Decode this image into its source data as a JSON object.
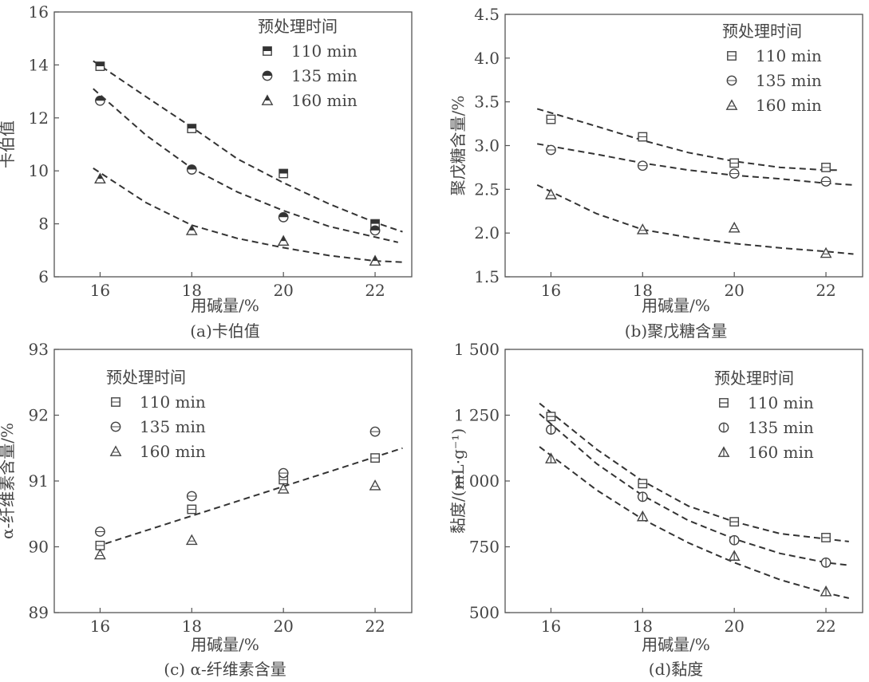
{
  "legend_title": "预处理时间",
  "xlabel": "用碱量/%",
  "chart_data": [
    {
      "id": "a",
      "type": "scatter",
      "caption": "(a)卡伯值",
      "ylabel": "卡伯值",
      "x_ticks": [
        "16",
        "18",
        "20",
        "22"
      ],
      "y_ticks": [
        "6",
        "8",
        "10",
        "12",
        "14",
        "16"
      ],
      "xlim": [
        15,
        22.8
      ],
      "ylim": [
        6,
        16
      ],
      "legend": "top-right",
      "marker_fill": "half",
      "series": [
        {
          "name": "110 min",
          "marker": "square",
          "x": [
            16,
            18,
            20,
            22
          ],
          "y": [
            13.95,
            11.6,
            9.9,
            8.0
          ],
          "fit": [
            [
              15.85,
              14.15
            ],
            [
              17,
              12.8
            ],
            [
              18,
              11.65
            ],
            [
              19,
              10.45
            ],
            [
              20,
              9.55
            ],
            [
              21,
              8.75
            ],
            [
              22,
              8.05
            ],
            [
              22.6,
              7.7
            ]
          ]
        },
        {
          "name": "135 min",
          "marker": "circle",
          "x": [
            16,
            18,
            20,
            22
          ],
          "y": [
            12.65,
            10.05,
            8.25,
            7.75
          ],
          "fit": [
            [
              15.85,
              13.1
            ],
            [
              17,
              11.35
            ],
            [
              18,
              10.1
            ],
            [
              19,
              9.2
            ],
            [
              20,
              8.5
            ],
            [
              21,
              7.9
            ],
            [
              22,
              7.5
            ],
            [
              22.5,
              7.3
            ]
          ]
        },
        {
          "name": "160 min",
          "marker": "triangle",
          "x": [
            16,
            18,
            20,
            22
          ],
          "y": [
            9.7,
            7.75,
            7.35,
            6.6
          ],
          "fit": [
            [
              15.85,
              10.1
            ],
            [
              17,
              8.8
            ],
            [
              18,
              7.95
            ],
            [
              19,
              7.45
            ],
            [
              20,
              7.1
            ],
            [
              21,
              6.8
            ],
            [
              22,
              6.6
            ],
            [
              22.6,
              6.55
            ]
          ]
        }
      ]
    },
    {
      "id": "b",
      "type": "scatter",
      "caption": "(b)聚戊糖含量",
      "ylabel": "聚戊糖含量/%",
      "x_ticks": [
        "16",
        "18",
        "20",
        "22"
      ],
      "y_ticks": [
        "1.5",
        "2.0",
        "2.5",
        "3.0",
        "3.5",
        "4.0",
        "4.5"
      ],
      "xlim": [
        15,
        22.8
      ],
      "ylim": [
        1.5,
        4.5
      ],
      "legend": "top-right",
      "marker_fill": "none",
      "series": [
        {
          "name": "110 min",
          "marker": "square",
          "x": [
            16,
            18,
            20,
            22
          ],
          "y": [
            3.3,
            3.1,
            2.8,
            2.75
          ],
          "fit": [
            [
              15.7,
              3.42
            ],
            [
              17,
              3.22
            ],
            [
              18,
              3.06
            ],
            [
              19,
              2.92
            ],
            [
              20,
              2.82
            ],
            [
              21,
              2.75
            ],
            [
              22,
              2.72
            ],
            [
              22.3,
              2.72
            ]
          ]
        },
        {
          "name": "135 min",
          "marker": "circle",
          "x": [
            16,
            18,
            20,
            22
          ],
          "y": [
            2.95,
            2.77,
            2.68,
            2.59
          ],
          "fit": [
            [
              15.7,
              3.02
            ],
            [
              17,
              2.9
            ],
            [
              18,
              2.8
            ],
            [
              19,
              2.72
            ],
            [
              20,
              2.66
            ],
            [
              21,
              2.62
            ],
            [
              22,
              2.57
            ],
            [
              22.6,
              2.55
            ]
          ]
        },
        {
          "name": "160 min",
          "marker": "triangle",
          "x": [
            16,
            18,
            20,
            22
          ],
          "y": [
            2.44,
            2.04,
            2.06,
            1.77
          ],
          "fit": [
            [
              15.7,
              2.55
            ],
            [
              17,
              2.22
            ],
            [
              18,
              2.04
            ],
            [
              19,
              1.95
            ],
            [
              20,
              1.88
            ],
            [
              21,
              1.83
            ],
            [
              22,
              1.79
            ],
            [
              22.6,
              1.76
            ]
          ]
        }
      ]
    },
    {
      "id": "c",
      "type": "scatter",
      "caption": "(c) α-纤维素含量",
      "ylabel": "α-纤维素含量/%",
      "x_ticks": [
        "16",
        "18",
        "20",
        "22"
      ],
      "y_ticks": [
        "89",
        "90",
        "91",
        "92",
        "93"
      ],
      "xlim": [
        15,
        22.8
      ],
      "ylim": [
        89,
        93
      ],
      "legend": "top-left",
      "marker_fill": "none",
      "series": [
        {
          "name": "110 min",
          "marker": "square",
          "x": [
            16,
            18,
            20,
            22
          ],
          "y": [
            90.02,
            90.57,
            91.02,
            91.35
          ]
        },
        {
          "name": "135 min",
          "marker": "circle",
          "x": [
            16,
            18,
            20,
            22
          ],
          "y": [
            90.23,
            90.77,
            91.12,
            91.75
          ]
        },
        {
          "name": "160 min",
          "marker": "triangle",
          "x": [
            16,
            18,
            20,
            22
          ],
          "y": [
            89.88,
            90.1,
            90.88,
            90.93
          ]
        }
      ],
      "fit": [
        [
          15.9,
          90.0
        ],
        [
          22.6,
          91.5
        ]
      ]
    },
    {
      "id": "d",
      "type": "scatter",
      "caption": "(d)黏度",
      "ylabel": "黏度/(mL·g⁻¹)",
      "x_ticks": [
        "16",
        "18",
        "20",
        "22"
      ],
      "y_ticks": [
        "500",
        "750",
        "1 000",
        "1 250",
        "1 500"
      ],
      "xlim": [
        15,
        22.8
      ],
      "ylim": [
        500,
        1500
      ],
      "legend": "top-right",
      "marker_fill": "cross",
      "series": [
        {
          "name": "110 min",
          "marker": "square",
          "x": [
            16,
            18,
            20,
            22
          ],
          "y": [
            1245,
            990,
            845,
            785
          ],
          "fit": [
            [
              15.75,
              1295
            ],
            [
              17,
              1120
            ],
            [
              18,
              1000
            ],
            [
              19,
              905
            ],
            [
              20,
              845
            ],
            [
              21,
              800
            ],
            [
              22,
              780
            ],
            [
              22.5,
              770
            ]
          ]
        },
        {
          "name": "135 min",
          "marker": "circle",
          "x": [
            16,
            18,
            20,
            22
          ],
          "y": [
            1195,
            940,
            775,
            690
          ],
          "fit": [
            [
              15.75,
              1255
            ],
            [
              17,
              1065
            ],
            [
              18,
              945
            ],
            [
              19,
              850
            ],
            [
              20,
              780
            ],
            [
              21,
              725
            ],
            [
              22,
              690
            ],
            [
              22.5,
              680
            ]
          ]
        },
        {
          "name": "160 min",
          "marker": "triangle",
          "x": [
            16,
            18,
            20,
            22
          ],
          "y": [
            1085,
            865,
            715,
            580
          ],
          "fit": [
            [
              15.75,
              1130
            ],
            [
              17,
              965
            ],
            [
              18,
              855
            ],
            [
              19,
              765
            ],
            [
              20,
              690
            ],
            [
              21,
              625
            ],
            [
              22,
              575
            ],
            [
              22.5,
              555
            ]
          ]
        }
      ]
    }
  ]
}
